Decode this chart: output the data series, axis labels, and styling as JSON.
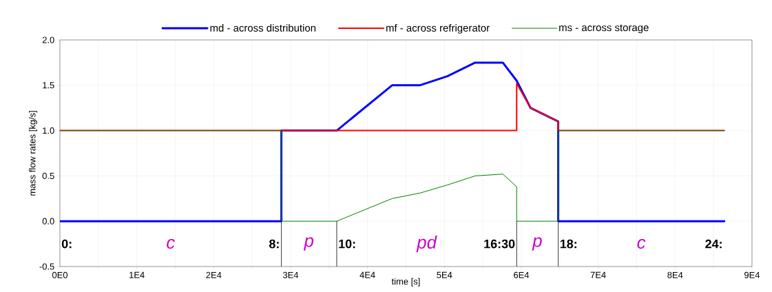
{
  "chart_data": {
    "type": "line",
    "xlabel": "time [s]",
    "ylabel": "mass flow rates [kg/s]",
    "xlim": [
      0,
      90000
    ],
    "ylim": [
      -0.5,
      2.0
    ],
    "xticks": [
      {
        "value": 0,
        "label": "0E0"
      },
      {
        "value": 10000,
        "label": "1E4"
      },
      {
        "value": 20000,
        "label": "2E4"
      },
      {
        "value": 30000,
        "label": "3E4"
      },
      {
        "value": 40000,
        "label": "4E4"
      },
      {
        "value": 50000,
        "label": "5E4"
      },
      {
        "value": 60000,
        "label": "6E4"
      },
      {
        "value": 70000,
        "label": "7E4"
      },
      {
        "value": 80000,
        "label": "8E4"
      },
      {
        "value": 90000,
        "label": "9E4"
      }
    ],
    "yticks": [
      -0.5,
      {
        "value": 0,
        "label": "0.0"
      },
      0.5,
      {
        "value": 1,
        "label": "1.0"
      },
      1.5,
      {
        "value": 2,
        "label": "2.0"
      }
    ],
    "grid": true,
    "legend": "top",
    "marker": "none",
    "line_style": "solid",
    "series": [
      {
        "name": "md - across distribution",
        "color": "#0000ff",
        "x": [
          0,
          28800,
          28800,
          36000,
          43200,
          46800,
          50400,
          54000,
          57600,
          59400,
          61200,
          64800,
          64800,
          86400
        ],
        "values": [
          0,
          0,
          1,
          1,
          1.5,
          1.5,
          1.6,
          1.75,
          1.75,
          1.55,
          1.25,
          1.1,
          0,
          0
        ]
      },
      {
        "name": "mf - across refrigerator",
        "color": "#ff0000",
        "x": [
          0,
          59400,
          59400,
          61200,
          64800,
          64800,
          86400
        ],
        "values": [
          1,
          1,
          1.52,
          1.25,
          1.1,
          1,
          1
        ]
      },
      {
        "name": "ms - across storage",
        "color": "#008000",
        "x": [
          0,
          28800,
          28800,
          36000,
          43200,
          46800,
          50400,
          54000,
          57600,
          59400,
          59400,
          64800,
          64800,
          86400
        ],
        "values": [
          1,
          1,
          0,
          0,
          0.25,
          0.31,
          0.4,
          0.5,
          0.52,
          0.38,
          0,
          0,
          1,
          1
        ]
      }
    ],
    "ref_lines": [
      {
        "axis": "x",
        "value": 28800,
        "color": "#000000"
      },
      {
        "axis": "x",
        "value": 36000,
        "color": "#000000"
      },
      {
        "axis": "x",
        "value": 59400,
        "color": "#000000"
      },
      {
        "axis": "x",
        "value": 64800,
        "color": "#000000"
      }
    ],
    "annotations": [
      "0:",
      "c",
      "8:",
      "p",
      "10:",
      "pd",
      "16:30",
      "p",
      "18:",
      "c",
      "24:"
    ]
  }
}
